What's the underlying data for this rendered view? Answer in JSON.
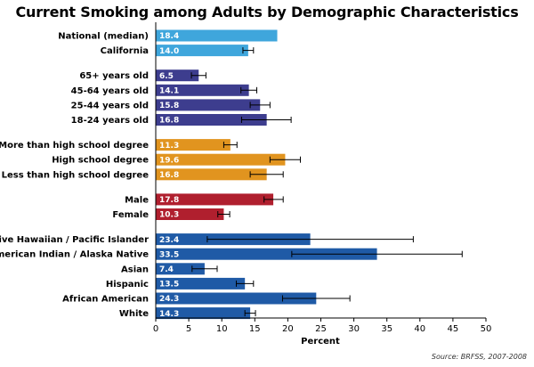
{
  "chart_data": {
    "type": "bar",
    "orientation": "horizontal",
    "title": "Current Smoking among Adults by Demographic Characteristics",
    "xlabel": "Percent",
    "ylabel": "",
    "xlim": [
      0,
      50
    ],
    "x_ticks": [
      "0",
      "5",
      "10",
      "15",
      "20",
      "25",
      "30",
      "35",
      "40",
      "45",
      "50"
    ],
    "grid": false,
    "source": "Source: BRFSS, 2007-2008",
    "groups": [
      {
        "color": "#3fa6dc",
        "bars": [
          {
            "label": "National (median)",
            "value": 18.4,
            "value_label": "18.4"
          },
          {
            "label": "California",
            "value": 14.0,
            "value_label": "14.0",
            "error": [
              13.2,
              14.8
            ]
          }
        ]
      },
      {
        "color": "#3d3d8e",
        "bars": [
          {
            "label": "65+ years old",
            "value": 6.5,
            "value_label": "6.5",
            "error": [
              5.4,
              7.6
            ]
          },
          {
            "label": "45-64 years old",
            "value": 14.1,
            "value_label": "14.1",
            "error": [
              12.9,
              15.3
            ]
          },
          {
            "label": "25-44 years old",
            "value": 15.8,
            "value_label": "15.8",
            "error": [
              14.3,
              17.3
            ]
          },
          {
            "label": "18-24 years old",
            "value": 16.8,
            "value_label": "16.8",
            "error": [
              13.0,
              20.5
            ]
          }
        ]
      },
      {
        "color": "#e1941f",
        "bars": [
          {
            "label": "More than high school degree",
            "value": 11.3,
            "value_label": "11.3",
            "error": [
              10.3,
              12.3
            ]
          },
          {
            "label": "High school degree",
            "value": 19.6,
            "value_label": "19.6",
            "error": [
              17.3,
              21.9
            ]
          },
          {
            "label": "Less than high school degree",
            "value": 16.8,
            "value_label": "16.8",
            "error": [
              14.3,
              19.3
            ]
          }
        ]
      },
      {
        "color": "#b01f2e",
        "bars": [
          {
            "label": "Male",
            "value": 17.8,
            "value_label": "17.8",
            "error": [
              16.4,
              19.3
            ]
          },
          {
            "label": "Female",
            "value": 10.3,
            "value_label": "10.3",
            "error": [
              9.4,
              11.2
            ]
          }
        ]
      },
      {
        "color": "#1f5aa6",
        "bars": [
          {
            "label": "Native Hawaiian / Pacific Islander",
            "value": 23.4,
            "value_label": "23.4",
            "error": [
              7.8,
              39.0
            ]
          },
          {
            "label": "American Indian / Alaska Native",
            "value": 33.5,
            "value_label": "33.5",
            "error": [
              20.6,
              46.4
            ]
          },
          {
            "label": "Asian",
            "value": 7.4,
            "value_label": "7.4",
            "error": [
              5.5,
              9.3
            ]
          },
          {
            "label": "Hispanic",
            "value": 13.5,
            "value_label": "13.5",
            "error": [
              12.2,
              14.8
            ]
          },
          {
            "label": "African American",
            "value": 24.3,
            "value_label": "24.3",
            "error": [
              19.2,
              29.4
            ]
          },
          {
            "label": "White",
            "value": 14.3,
            "value_label": "14.3",
            "error": [
              13.5,
              15.1
            ]
          }
        ]
      }
    ]
  }
}
